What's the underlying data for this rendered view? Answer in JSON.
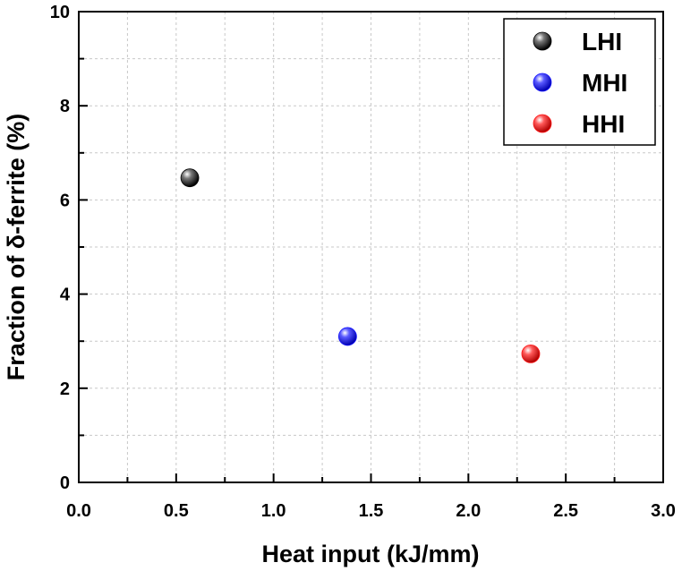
{
  "chart_data": {
    "type": "scatter",
    "title": "",
    "xlabel": "Heat input (kJ/mm)",
    "ylabel": "Fraction of δ-ferrite (%)",
    "xlim": [
      0.0,
      3.0
    ],
    "ylim": [
      0,
      10
    ],
    "x_ticks": [
      "0.0",
      "0.5",
      "1.0",
      "1.5",
      "2.0",
      "2.5",
      "3.0"
    ],
    "y_ticks": [
      "0",
      "2",
      "4",
      "6",
      "8",
      "10"
    ],
    "grid": true,
    "legend_position": "top-right",
    "series": [
      {
        "name": "LHI",
        "color": "#000000",
        "x": [
          0.57
        ],
        "y": [
          6.47
        ]
      },
      {
        "name": "MHI",
        "color": "#1414ff",
        "x": [
          1.38
        ],
        "y": [
          3.1
        ]
      },
      {
        "name": "HHI",
        "color": "#ff1414",
        "x": [
          2.32
        ],
        "y": [
          2.73
        ]
      }
    ]
  }
}
